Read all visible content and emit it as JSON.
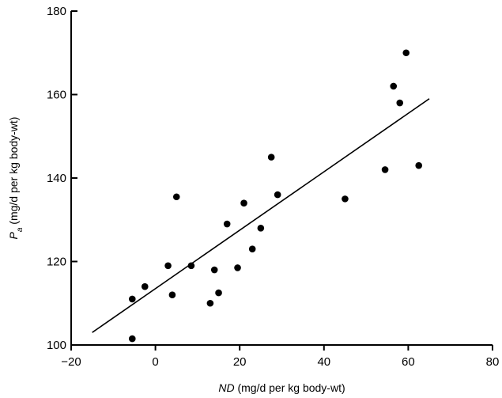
{
  "chart_data": {
    "type": "scatter",
    "title": "",
    "xlabel_main": "ND",
    "xlabel_rest": " (mg/d per kg body-wt)",
    "ylabel_main": "P",
    "ylabel_sub": "a",
    "ylabel_rest": " (mg/d per kg body-wt)",
    "xlim": [
      -20,
      80
    ],
    "ylim": [
      100,
      180
    ],
    "xticks": [
      -20,
      0,
      20,
      40,
      60,
      80
    ],
    "yticks": [
      100,
      120,
      140,
      160,
      180
    ],
    "grid": false,
    "series": [
      {
        "points": [
          {
            "x": -5.5,
            "y": 101.5
          },
          {
            "x": -5.5,
            "y": 111
          },
          {
            "x": -2.5,
            "y": 114
          },
          {
            "x": 3,
            "y": 119
          },
          {
            "x": 4,
            "y": 112
          },
          {
            "x": 5,
            "y": 135.5
          },
          {
            "x": 8.5,
            "y": 119
          },
          {
            "x": 13,
            "y": 110
          },
          {
            "x": 14,
            "y": 118
          },
          {
            "x": 15,
            "y": 112.5
          },
          {
            "x": 17,
            "y": 129
          },
          {
            "x": 19.5,
            "y": 118.5
          },
          {
            "x": 21,
            "y": 134
          },
          {
            "x": 23,
            "y": 123
          },
          {
            "x": 25,
            "y": 128
          },
          {
            "x": 27.5,
            "y": 145
          },
          {
            "x": 29,
            "y": 136
          },
          {
            "x": 45,
            "y": 135
          },
          {
            "x": 54.5,
            "y": 142
          },
          {
            "x": 56.5,
            "y": 162
          },
          {
            "x": 58,
            "y": 158
          },
          {
            "x": 59.5,
            "y": 170
          },
          {
            "x": 62.5,
            "y": 143
          }
        ]
      }
    ],
    "regression_line": {
      "x": [
        -15,
        65
      ],
      "y": [
        103,
        159
      ]
    }
  }
}
